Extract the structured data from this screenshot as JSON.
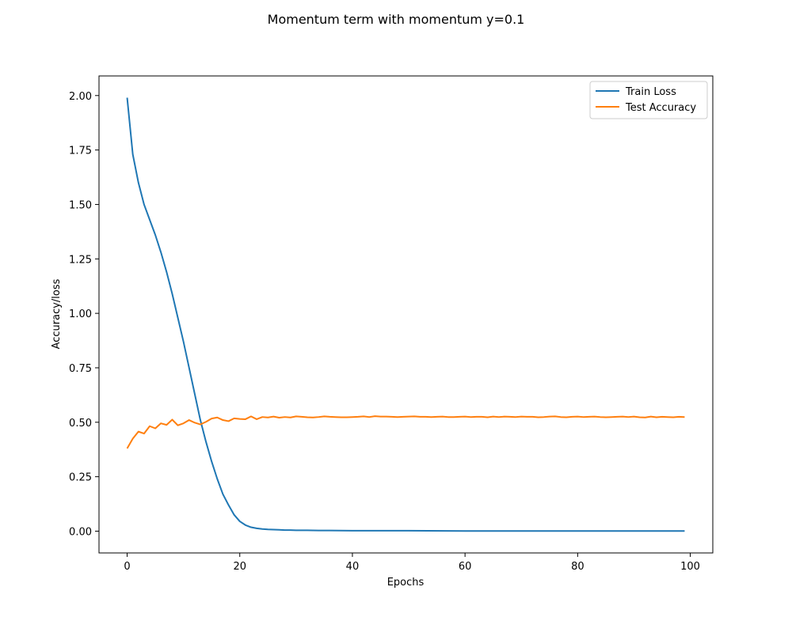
{
  "figure": {
    "title": "Momentum term with momentum y=0.1"
  },
  "chart_data": {
    "type": "line",
    "title": "Momentum term with momentum y=0.1",
    "xlabel": "Epochs",
    "ylabel": "Accuracy/loss",
    "xlim": [
      -5,
      104
    ],
    "ylim": [
      -0.1,
      2.09
    ],
    "xticks": [
      0,
      20,
      40,
      60,
      80,
      100
    ],
    "xtick_labels": [
      "0",
      "20",
      "40",
      "60",
      "80",
      "100"
    ],
    "yticks": [
      0.0,
      0.25,
      0.5,
      0.75,
      1.0,
      1.25,
      1.5,
      1.75,
      2.0
    ],
    "ytick_labels": [
      "0.00",
      "0.25",
      "0.50",
      "0.75",
      "1.00",
      "1.25",
      "1.50",
      "1.75",
      "2.00"
    ],
    "grid": false,
    "legend_position": "top-right",
    "series": [
      {
        "name": "Train Loss",
        "color": "#1f77b4",
        "x": [
          0,
          1,
          2,
          3,
          4,
          5,
          6,
          7,
          8,
          9,
          10,
          11,
          12,
          13,
          14,
          15,
          16,
          17,
          18,
          19,
          20,
          21,
          22,
          23,
          24,
          25,
          26,
          27,
          28,
          29,
          30,
          32,
          34,
          36,
          40,
          50,
          60,
          70,
          80,
          90,
          99
        ],
        "y": [
          1.99,
          1.73,
          1.6,
          1.5,
          1.43,
          1.36,
          1.28,
          1.19,
          1.09,
          0.98,
          0.87,
          0.75,
          0.63,
          0.51,
          0.41,
          0.32,
          0.24,
          0.17,
          0.12,
          0.075,
          0.045,
          0.028,
          0.018,
          0.013,
          0.01,
          0.008,
          0.007,
          0.006,
          0.005,
          0.005,
          0.004,
          0.004,
          0.003,
          0.003,
          0.002,
          0.002,
          0.001,
          0.001,
          0.001,
          0.001,
          0.001
        ]
      },
      {
        "name": "Test Accuracy",
        "color": "#ff7f0e",
        "x": [
          0,
          1,
          2,
          3,
          4,
          5,
          6,
          7,
          8,
          9,
          10,
          11,
          12,
          13,
          14,
          15,
          16,
          17,
          18,
          19,
          20,
          21,
          22,
          23,
          24,
          25,
          26,
          27,
          28,
          29,
          30,
          31,
          32,
          33,
          34,
          35,
          36,
          37,
          38,
          39,
          40,
          41,
          42,
          43,
          44,
          45,
          46,
          47,
          48,
          49,
          50,
          51,
          52,
          53,
          54,
          55,
          56,
          57,
          58,
          59,
          60,
          61,
          62,
          63,
          64,
          65,
          66,
          67,
          68,
          69,
          70,
          71,
          72,
          73,
          74,
          75,
          76,
          77,
          78,
          79,
          80,
          81,
          82,
          83,
          84,
          85,
          86,
          87,
          88,
          89,
          90,
          91,
          92,
          93,
          94,
          95,
          96,
          97,
          98,
          99
        ],
        "y": [
          0.38,
          0.425,
          0.457,
          0.448,
          0.482,
          0.472,
          0.495,
          0.488,
          0.512,
          0.486,
          0.495,
          0.51,
          0.498,
          0.49,
          0.502,
          0.517,
          0.522,
          0.51,
          0.505,
          0.518,
          0.515,
          0.514,
          0.527,
          0.514,
          0.524,
          0.522,
          0.526,
          0.521,
          0.524,
          0.522,
          0.527,
          0.525,
          0.523,
          0.522,
          0.524,
          0.527,
          0.525,
          0.524,
          0.523,
          0.523,
          0.524,
          0.525,
          0.527,
          0.524,
          0.528,
          0.526,
          0.526,
          0.525,
          0.524,
          0.525,
          0.526,
          0.527,
          0.525,
          0.525,
          0.524,
          0.525,
          0.526,
          0.524,
          0.524,
          0.525,
          0.526,
          0.524,
          0.525,
          0.525,
          0.523,
          0.526,
          0.524,
          0.526,
          0.525,
          0.524,
          0.526,
          0.525,
          0.525,
          0.523,
          0.524,
          0.526,
          0.527,
          0.524,
          0.523,
          0.525,
          0.526,
          0.524,
          0.525,
          0.526,
          0.524,
          0.523,
          0.524,
          0.525,
          0.526,
          0.524,
          0.526,
          0.523,
          0.522,
          0.526,
          0.523,
          0.525,
          0.524,
          0.523,
          0.525,
          0.524
        ]
      }
    ]
  }
}
